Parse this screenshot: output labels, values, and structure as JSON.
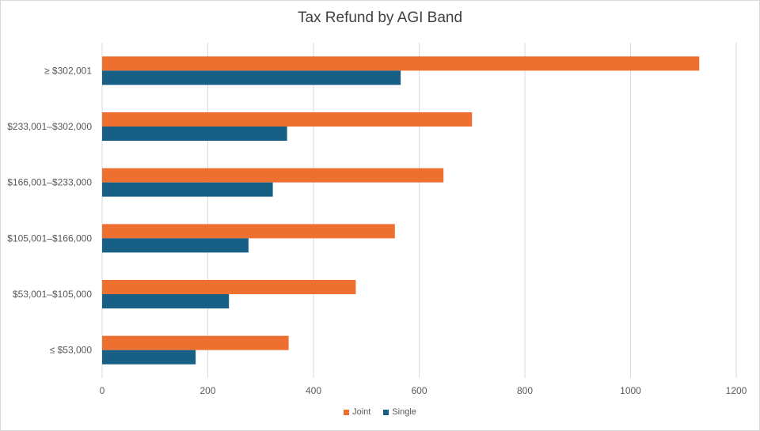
{
  "chart_data": {
    "type": "bar",
    "orientation": "horizontal",
    "title": "Tax Refund by AGI Band",
    "categories": [
      "≤ $53,000",
      "$53,001–$105,000",
      "$105,001–$166,000",
      "$166,001–$233,000",
      "$233,001–$302,000",
      "≥ $302,001"
    ],
    "series": [
      {
        "name": "Joint",
        "color": "#ed7031",
        "values": [
          353,
          480,
          554,
          646,
          700,
          1130
        ]
      },
      {
        "name": "Single",
        "color": "#175f85",
        "values": [
          177,
          240,
          277,
          323,
          350,
          565
        ]
      }
    ],
    "xlim": [
      0,
      1200
    ],
    "xticks": [
      0,
      200,
      400,
      600,
      800,
      1000,
      1200
    ],
    "grid": true,
    "legend_position": "bottom"
  }
}
